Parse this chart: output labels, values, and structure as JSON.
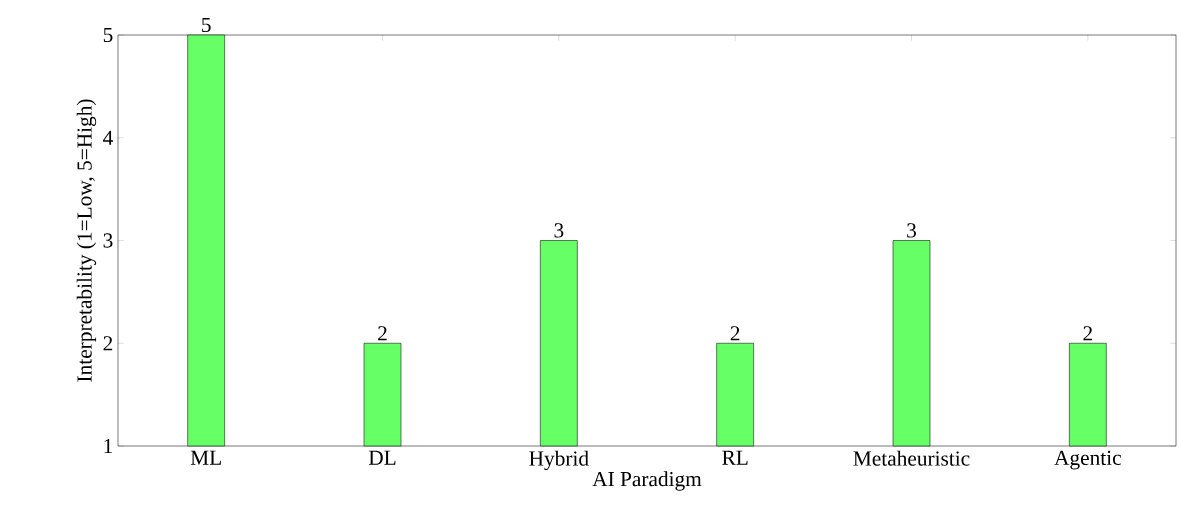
{
  "chart_data": {
    "type": "bar",
    "xlabel": "AI Paradigm",
    "ylabel": "Interpretability (1=Low, 5=High)",
    "categories": [
      "ML",
      "DL",
      "Hybrid",
      "RL",
      "Metaheuristic",
      "Agentic"
    ],
    "values": [
      5,
      2,
      3,
      2,
      3,
      2
    ],
    "color": "#66ff66",
    "ylim": [
      1,
      5
    ],
    "yticks": [
      1,
      2,
      3,
      4,
      5
    ],
    "data_labels": true
  }
}
